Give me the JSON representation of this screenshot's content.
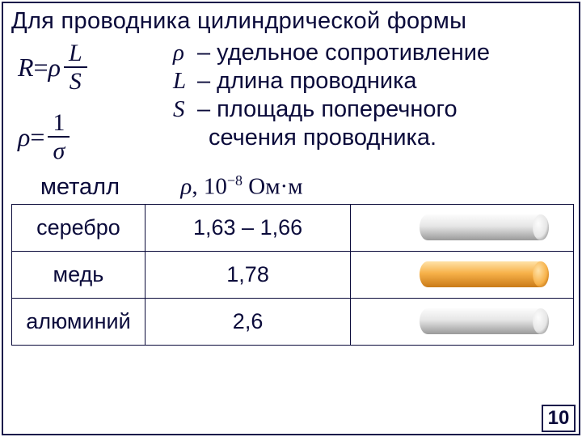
{
  "title": "Для проводника цилиндрической формы",
  "formulas": {
    "r_lhs": "R",
    "eq": " = ",
    "rho": "ρ",
    "L": "L",
    "S": "S",
    "one": "1",
    "sigma": "σ"
  },
  "defs": {
    "rho_sym": "ρ",
    "rho_txt": " – удельное сопротивление",
    "L_sym": "L",
    "L_txt": " – длина проводника",
    "S_sym": "S",
    "S_txt": " – площадь поперечного",
    "S_txt2": "сечения проводника."
  },
  "table_header": {
    "metal": "металл",
    "rho_unit_prefix": "ρ",
    "rho_unit_main": ", 10",
    "rho_unit_exp": "−8",
    "rho_unit_suffix": " Ом·м"
  },
  "rows": [
    {
      "metal": "серебро",
      "value": "1,63 – 1,66",
      "color_light": "#e6e6e6",
      "color_dark": "#9a9a9a",
      "highlight": "#fcfcfc"
    },
    {
      "metal": "медь",
      "value": "1,78",
      "color_light": "#f7b24a",
      "color_dark": "#c97a18",
      "highlight": "#ffe2a8"
    },
    {
      "metal": "алюминий",
      "value": "2,6",
      "color_light": "#e6e6e6",
      "color_dark": "#9a9a9a",
      "highlight": "#fcfcfc"
    }
  ],
  "page_number": "10",
  "style": {
    "border_color": "#1a1a4a",
    "text_color": "#0a0a3a",
    "title_fontsize": 29,
    "body_fontsize": 29,
    "table_fontsize": 27,
    "cylinder": {
      "width": 160,
      "height": 36,
      "ellipse_rx": 10
    }
  }
}
